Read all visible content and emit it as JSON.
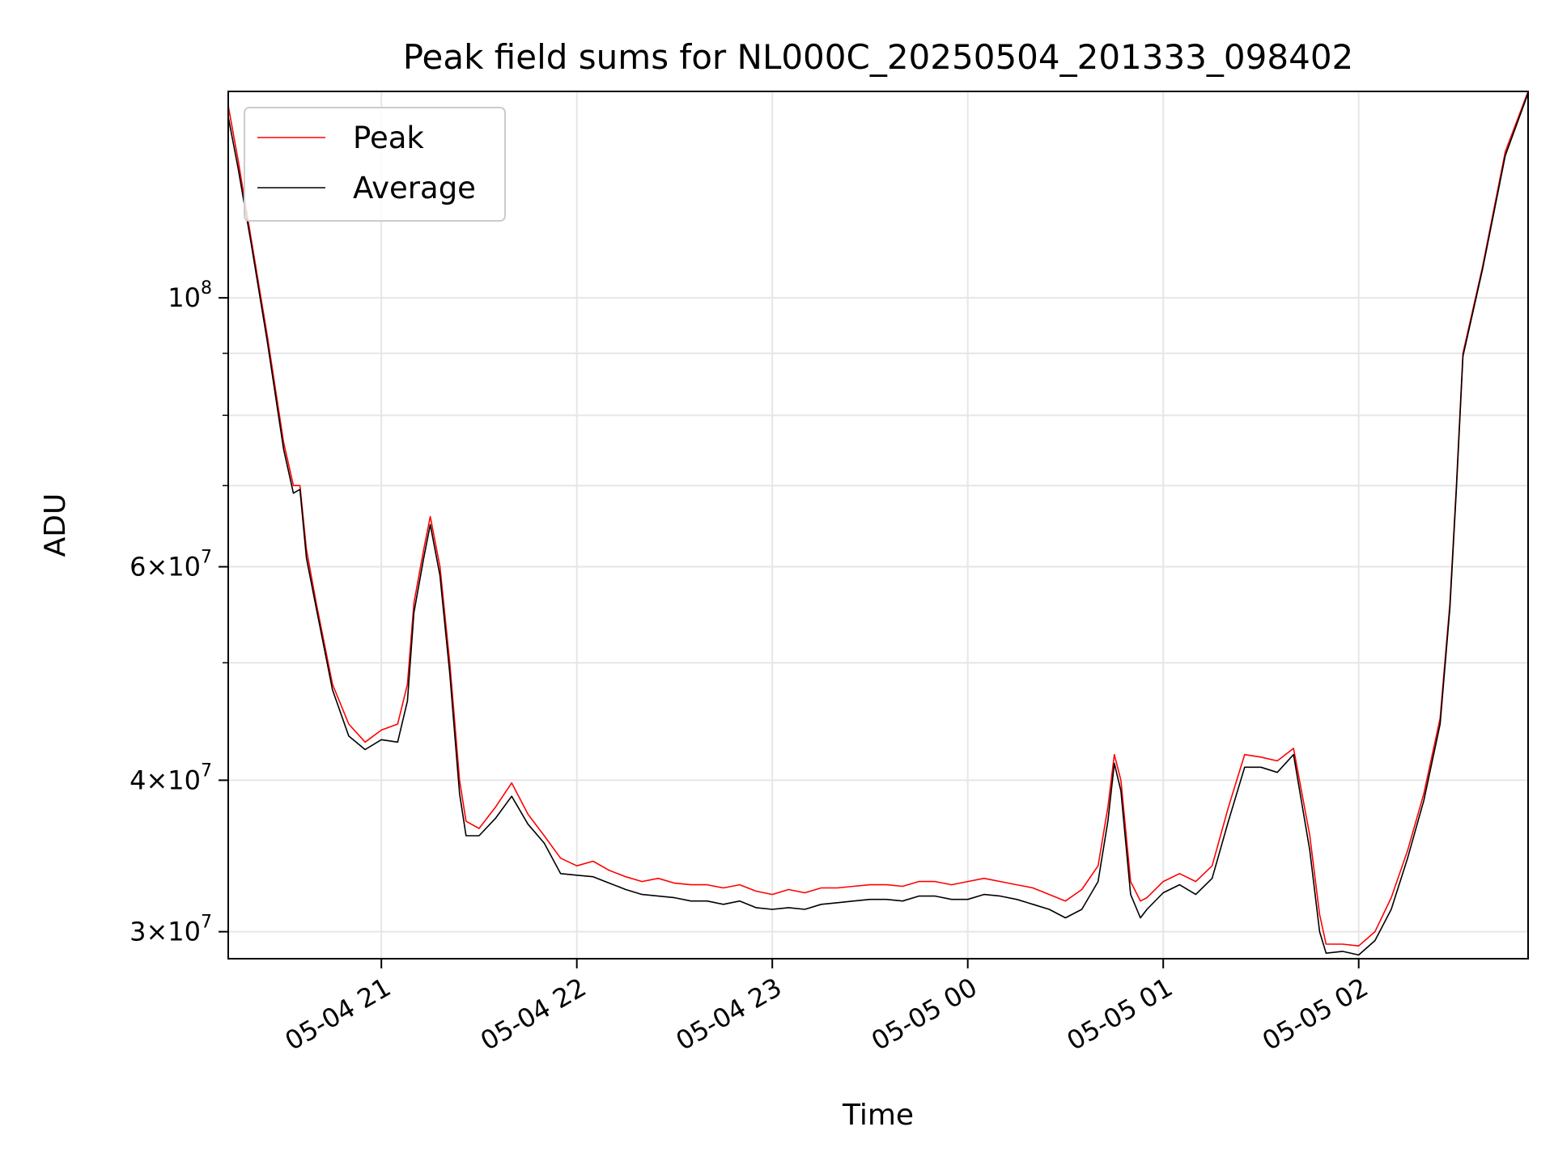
{
  "chart_data": {
    "type": "line",
    "title": "Peak field sums for NL000C_20250504_201333_098402",
    "xlabel": "Time",
    "ylabel": "ADU",
    "yscale": "log",
    "xlim": [
      "2025-05-04 20:13",
      "2025-05-05 02:52"
    ],
    "ylim": [
      28500000,
      148000000
    ],
    "grid": true,
    "legend_position": "top-left",
    "x_ticks": [
      {
        "value": "2025-05-04 21:00",
        "label": "05-04 21"
      },
      {
        "value": "2025-05-04 22:00",
        "label": "05-04 22"
      },
      {
        "value": "2025-05-04 23:00",
        "label": "05-04 23"
      },
      {
        "value": "2025-05-05 00:00",
        "label": "05-05 00"
      },
      {
        "value": "2025-05-05 01:00",
        "label": "05-05 01"
      },
      {
        "value": "2025-05-05 02:00",
        "label": "05-05 02"
      }
    ],
    "y_ticks": [
      {
        "value": 30000000,
        "base": "3×10",
        "exp": "7"
      },
      {
        "value": 40000000,
        "base": "4×10",
        "exp": "7"
      },
      {
        "value": 60000000,
        "base": "6×10",
        "exp": "7"
      },
      {
        "value": 100000000,
        "base": "10",
        "exp": "8"
      }
    ],
    "y_minor_ticks": [
      50000000,
      70000000,
      80000000,
      90000000
    ],
    "series": [
      {
        "name": "Peak",
        "color": "#ff0000",
        "points": [
          [
            "2025-05-04 20:13",
            144000000
          ],
          [
            "2025-05-04 20:16",
            130000000
          ],
          [
            "2025-05-04 20:20",
            112000000
          ],
          [
            "2025-05-04 20:25",
            93000000
          ],
          [
            "2025-05-04 20:30",
            76000000
          ],
          [
            "2025-05-04 20:33",
            70000000
          ],
          [
            "2025-05-04 20:35",
            70000000
          ],
          [
            "2025-05-04 20:37",
            62000000
          ],
          [
            "2025-05-04 20:40",
            56000000
          ],
          [
            "2025-05-04 20:45",
            48000000
          ],
          [
            "2025-05-04 20:50",
            44500000
          ],
          [
            "2025-05-04 20:55",
            43000000
          ],
          [
            "2025-05-04 21:00",
            44000000
          ],
          [
            "2025-05-04 21:05",
            44500000
          ],
          [
            "2025-05-04 21:08",
            48000000
          ],
          [
            "2025-05-04 21:10",
            56000000
          ],
          [
            "2025-05-04 21:13",
            62000000
          ],
          [
            "2025-05-04 21:15",
            66000000
          ],
          [
            "2025-05-04 21:18",
            60000000
          ],
          [
            "2025-05-04 21:21",
            50000000
          ],
          [
            "2025-05-04 21:24",
            40000000
          ],
          [
            "2025-05-04 21:26",
            37000000
          ],
          [
            "2025-05-04 21:30",
            36500000
          ],
          [
            "2025-05-04 21:35",
            38000000
          ],
          [
            "2025-05-04 21:40",
            39800000
          ],
          [
            "2025-05-04 21:45",
            37500000
          ],
          [
            "2025-05-04 21:50",
            36000000
          ],
          [
            "2025-05-04 21:55",
            34500000
          ],
          [
            "2025-05-04 22:00",
            34000000
          ],
          [
            "2025-05-04 22:05",
            34300000
          ],
          [
            "2025-05-04 22:10",
            33700000
          ],
          [
            "2025-05-04 22:15",
            33300000
          ],
          [
            "2025-05-04 22:20",
            33000000
          ],
          [
            "2025-05-04 22:25",
            33200000
          ],
          [
            "2025-05-04 22:30",
            32900000
          ],
          [
            "2025-05-04 22:35",
            32800000
          ],
          [
            "2025-05-04 22:40",
            32800000
          ],
          [
            "2025-05-04 22:45",
            32600000
          ],
          [
            "2025-05-04 22:50",
            32800000
          ],
          [
            "2025-05-04 22:55",
            32400000
          ],
          [
            "2025-05-04 23:00",
            32200000
          ],
          [
            "2025-05-04 23:05",
            32500000
          ],
          [
            "2025-05-04 23:10",
            32300000
          ],
          [
            "2025-05-04 23:15",
            32600000
          ],
          [
            "2025-05-04 23:20",
            32600000
          ],
          [
            "2025-05-04 23:25",
            32700000
          ],
          [
            "2025-05-04 23:30",
            32800000
          ],
          [
            "2025-05-04 23:35",
            32800000
          ],
          [
            "2025-05-04 23:40",
            32700000
          ],
          [
            "2025-05-04 23:45",
            33000000
          ],
          [
            "2025-05-04 23:50",
            33000000
          ],
          [
            "2025-05-04 23:55",
            32800000
          ],
          [
            "2025-05-05 00:00",
            33000000
          ],
          [
            "2025-05-05 00:05",
            33200000
          ],
          [
            "2025-05-05 00:10",
            33000000
          ],
          [
            "2025-05-05 00:15",
            32800000
          ],
          [
            "2025-05-05 00:20",
            32600000
          ],
          [
            "2025-05-05 00:25",
            32200000
          ],
          [
            "2025-05-05 00:30",
            31800000
          ],
          [
            "2025-05-05 00:35",
            32500000
          ],
          [
            "2025-05-05 00:40",
            34000000
          ],
          [
            "2025-05-05 00:43",
            38000000
          ],
          [
            "2025-05-05 00:45",
            42000000
          ],
          [
            "2025-05-05 00:47",
            40000000
          ],
          [
            "2025-05-05 00:50",
            33000000
          ],
          [
            "2025-05-05 00:53",
            31800000
          ],
          [
            "2025-05-05 00:55",
            32000000
          ],
          [
            "2025-05-05 01:00",
            33000000
          ],
          [
            "2025-05-05 01:05",
            33500000
          ],
          [
            "2025-05-05 01:10",
            33000000
          ],
          [
            "2025-05-05 01:15",
            34000000
          ],
          [
            "2025-05-05 01:20",
            38000000
          ],
          [
            "2025-05-05 01:25",
            42000000
          ],
          [
            "2025-05-05 01:30",
            41800000
          ],
          [
            "2025-05-05 01:35",
            41500000
          ],
          [
            "2025-05-05 01:40",
            42500000
          ],
          [
            "2025-05-05 01:45",
            36000000
          ],
          [
            "2025-05-05 01:48",
            31000000
          ],
          [
            "2025-05-05 01:50",
            29300000
          ],
          [
            "2025-05-05 01:55",
            29300000
          ],
          [
            "2025-05-05 02:00",
            29200000
          ],
          [
            "2025-05-05 02:05",
            30000000
          ],
          [
            "2025-05-05 02:10",
            32000000
          ],
          [
            "2025-05-05 02:15",
            35000000
          ],
          [
            "2025-05-05 02:20",
            39000000
          ],
          [
            "2025-05-05 02:25",
            45000000
          ],
          [
            "2025-05-05 02:28",
            56000000
          ],
          [
            "2025-05-05 02:30",
            70000000
          ],
          [
            "2025-05-05 02:32",
            90000000
          ],
          [
            "2025-05-05 02:38",
            106000000
          ],
          [
            "2025-05-05 02:45",
            132000000
          ],
          [
            "2025-05-05 02:52",
            148000000
          ]
        ]
      },
      {
        "name": "Average",
        "color": "#000000",
        "points": [
          [
            "2025-05-04 20:13",
            141000000
          ],
          [
            "2025-05-04 20:16",
            128000000
          ],
          [
            "2025-05-04 20:20",
            111000000
          ],
          [
            "2025-05-04 20:25",
            92000000
          ],
          [
            "2025-05-04 20:30",
            75000000
          ],
          [
            "2025-05-04 20:33",
            69000000
          ],
          [
            "2025-05-04 20:35",
            69500000
          ],
          [
            "2025-05-04 20:37",
            61000000
          ],
          [
            "2025-05-04 20:40",
            55500000
          ],
          [
            "2025-05-04 20:45",
            47500000
          ],
          [
            "2025-05-04 20:50",
            43500000
          ],
          [
            "2025-05-04 20:55",
            42400000
          ],
          [
            "2025-05-04 21:00",
            43200000
          ],
          [
            "2025-05-04 21:05",
            43000000
          ],
          [
            "2025-05-04 21:08",
            46500000
          ],
          [
            "2025-05-04 21:10",
            55000000
          ],
          [
            "2025-05-04 21:13",
            61000000
          ],
          [
            "2025-05-04 21:15",
            65000000
          ],
          [
            "2025-05-04 21:18",
            59000000
          ],
          [
            "2025-05-04 21:21",
            49000000
          ],
          [
            "2025-05-04 21:24",
            39000000
          ],
          [
            "2025-05-04 21:26",
            36000000
          ],
          [
            "2025-05-04 21:30",
            36000000
          ],
          [
            "2025-05-04 21:35",
            37200000
          ],
          [
            "2025-05-04 21:40",
            38800000
          ],
          [
            "2025-05-04 21:45",
            36800000
          ],
          [
            "2025-05-04 21:50",
            35500000
          ],
          [
            "2025-05-04 21:55",
            33500000
          ],
          [
            "2025-05-04 22:00",
            33400000
          ],
          [
            "2025-05-04 22:05",
            33300000
          ],
          [
            "2025-05-04 22:10",
            32900000
          ],
          [
            "2025-05-04 22:15",
            32500000
          ],
          [
            "2025-05-04 22:20",
            32200000
          ],
          [
            "2025-05-04 22:25",
            32100000
          ],
          [
            "2025-05-04 22:30",
            32000000
          ],
          [
            "2025-05-04 22:35",
            31800000
          ],
          [
            "2025-05-04 22:40",
            31800000
          ],
          [
            "2025-05-04 22:45",
            31600000
          ],
          [
            "2025-05-04 22:50",
            31800000
          ],
          [
            "2025-05-04 22:55",
            31400000
          ],
          [
            "2025-05-04 23:00",
            31300000
          ],
          [
            "2025-05-04 23:05",
            31400000
          ],
          [
            "2025-05-04 23:10",
            31300000
          ],
          [
            "2025-05-04 23:15",
            31600000
          ],
          [
            "2025-05-04 23:20",
            31700000
          ],
          [
            "2025-05-04 23:25",
            31800000
          ],
          [
            "2025-05-04 23:30",
            31900000
          ],
          [
            "2025-05-04 23:35",
            31900000
          ],
          [
            "2025-05-04 23:40",
            31800000
          ],
          [
            "2025-05-04 23:45",
            32100000
          ],
          [
            "2025-05-04 23:50",
            32100000
          ],
          [
            "2025-05-04 23:55",
            31900000
          ],
          [
            "2025-05-05 00:00",
            31900000
          ],
          [
            "2025-05-05 00:05",
            32200000
          ],
          [
            "2025-05-05 00:10",
            32100000
          ],
          [
            "2025-05-05 00:15",
            31900000
          ],
          [
            "2025-05-05 00:20",
            31600000
          ],
          [
            "2025-05-05 00:25",
            31300000
          ],
          [
            "2025-05-05 00:30",
            30800000
          ],
          [
            "2025-05-05 00:35",
            31300000
          ],
          [
            "2025-05-05 00:40",
            33000000
          ],
          [
            "2025-05-05 00:43",
            37000000
          ],
          [
            "2025-05-05 00:45",
            41300000
          ],
          [
            "2025-05-05 00:47",
            39200000
          ],
          [
            "2025-05-05 00:50",
            32200000
          ],
          [
            "2025-05-05 00:53",
            30800000
          ],
          [
            "2025-05-05 00:55",
            31300000
          ],
          [
            "2025-05-05 01:00",
            32300000
          ],
          [
            "2025-05-05 01:05",
            32800000
          ],
          [
            "2025-05-05 01:10",
            32200000
          ],
          [
            "2025-05-05 01:15",
            33200000
          ],
          [
            "2025-05-05 01:20",
            37000000
          ],
          [
            "2025-05-05 01:25",
            41000000
          ],
          [
            "2025-05-05 01:30",
            41000000
          ],
          [
            "2025-05-05 01:35",
            40600000
          ],
          [
            "2025-05-05 01:40",
            42000000
          ],
          [
            "2025-05-05 01:45",
            35000000
          ],
          [
            "2025-05-05 01:48",
            30000000
          ],
          [
            "2025-05-05 01:50",
            28800000
          ],
          [
            "2025-05-05 01:55",
            28900000
          ],
          [
            "2025-05-05 02:00",
            28700000
          ],
          [
            "2025-05-05 02:05",
            29500000
          ],
          [
            "2025-05-05 02:10",
            31300000
          ],
          [
            "2025-05-05 02:15",
            34500000
          ],
          [
            "2025-05-05 02:20",
            38500000
          ],
          [
            "2025-05-05 02:25",
            44500000
          ],
          [
            "2025-05-05 02:28",
            55500000
          ],
          [
            "2025-05-05 02:30",
            69500000
          ],
          [
            "2025-05-05 02:32",
            89500000
          ],
          [
            "2025-05-05 02:38",
            105500000
          ],
          [
            "2025-05-05 02:45",
            131000000
          ],
          [
            "2025-05-05 02:52",
            147500000
          ]
        ]
      }
    ]
  }
}
